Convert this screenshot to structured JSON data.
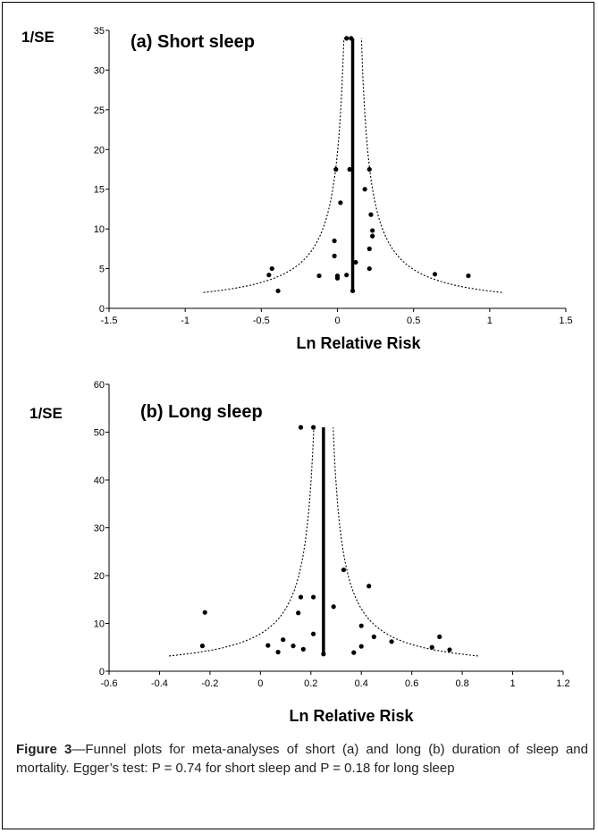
{
  "chart_data": [
    {
      "type": "scatter",
      "title": "(a) Short sleep",
      "ylabel": "1/SE",
      "xlabel": "Ln Relative Risk",
      "xlim": [
        -1.5,
        1.5
      ],
      "ylim": [
        0,
        35
      ],
      "x_ticks": [
        "-1.5",
        "-1",
        "-0.5",
        "0",
        "0.5",
        "1",
        "1.5"
      ],
      "x_tick_values": [
        -1.5,
        -1,
        -0.5,
        0,
        0.5,
        1,
        1.5
      ],
      "y_ticks": [
        "0",
        "5",
        "10",
        "15",
        "20",
        "25",
        "30",
        "35"
      ],
      "y_tick_values": [
        0,
        5,
        10,
        15,
        20,
        25,
        30,
        35
      ],
      "pooled_estimate": 0.1,
      "funnel_limits": "dotted 95% pseudo-confidence limits",
      "points": [
        {
          "x": 0.06,
          "y": 34
        },
        {
          "x": 0.09,
          "y": 34
        },
        {
          "x": -0.01,
          "y": 17.5
        },
        {
          "x": 0.08,
          "y": 17.5
        },
        {
          "x": 0.21,
          "y": 17.5
        },
        {
          "x": 0.18,
          "y": 15
        },
        {
          "x": 0.02,
          "y": 13.3
        },
        {
          "x": 0.22,
          "y": 11.8
        },
        {
          "x": 0.23,
          "y": 9.8
        },
        {
          "x": 0.23,
          "y": 9.1
        },
        {
          "x": -0.02,
          "y": 8.5
        },
        {
          "x": 0.21,
          "y": 7.5
        },
        {
          "x": -0.02,
          "y": 6.6
        },
        {
          "x": 0.12,
          "y": 5.8
        },
        {
          "x": -0.43,
          "y": 5
        },
        {
          "x": 0.21,
          "y": 5
        },
        {
          "x": -0.45,
          "y": 4.2
        },
        {
          "x": -0.12,
          "y": 4.1
        },
        {
          "x": 0.0,
          "y": 4.1
        },
        {
          "x": 0.06,
          "y": 4.2
        },
        {
          "x": 0.0,
          "y": 3.8
        },
        {
          "x": 0.64,
          "y": 4.3
        },
        {
          "x": 0.86,
          "y": 4.1
        },
        {
          "x": -0.39,
          "y": 2.2
        },
        {
          "x": 0.1,
          "y": 2.2
        }
      ]
    },
    {
      "type": "scatter",
      "title": "(b) Long sleep",
      "ylabel": "1/SE",
      "xlabel": "Ln Relative Risk",
      "xlim": [
        -0.6,
        1.2
      ],
      "ylim": [
        0,
        60
      ],
      "x_ticks": [
        "-0.6",
        "-0.4",
        "-0.2",
        "0",
        "0.2",
        "0.4",
        "0.6",
        "0.8",
        "1",
        "1.2"
      ],
      "x_tick_values": [
        -0.6,
        -0.4,
        -0.2,
        0,
        0.2,
        0.4,
        0.6,
        0.8,
        1,
        1.2
      ],
      "y_ticks": [
        "0",
        "10",
        "20",
        "30",
        "40",
        "50",
        "60"
      ],
      "y_tick_values": [
        0,
        10,
        20,
        30,
        40,
        50,
        60
      ],
      "pooled_estimate": 0.25,
      "funnel_limits": "dotted 95% pseudo-confidence limits",
      "points": [
        {
          "x": 0.16,
          "y": 51
        },
        {
          "x": 0.21,
          "y": 51
        },
        {
          "x": 0.33,
          "y": 21.2
        },
        {
          "x": 0.43,
          "y": 17.8
        },
        {
          "x": 0.16,
          "y": 15.5
        },
        {
          "x": 0.21,
          "y": 15.5
        },
        {
          "x": 0.29,
          "y": 13.5
        },
        {
          "x": -0.22,
          "y": 12.3
        },
        {
          "x": 0.15,
          "y": 12.2
        },
        {
          "x": 0.4,
          "y": 9.5
        },
        {
          "x": 0.21,
          "y": 7.8
        },
        {
          "x": 0.45,
          "y": 7.2
        },
        {
          "x": 0.71,
          "y": 7.2
        },
        {
          "x": 0.09,
          "y": 6.6
        },
        {
          "x": 0.52,
          "y": 6.2
        },
        {
          "x": -0.23,
          "y": 5.3
        },
        {
          "x": 0.03,
          "y": 5.4
        },
        {
          "x": 0.13,
          "y": 5.3
        },
        {
          "x": 0.4,
          "y": 5.2
        },
        {
          "x": 0.68,
          "y": 5.0
        },
        {
          "x": 0.17,
          "y": 4.6
        },
        {
          "x": 0.07,
          "y": 4.0
        },
        {
          "x": 0.37,
          "y": 3.9
        },
        {
          "x": 0.25,
          "y": 3.6
        },
        {
          "x": 0.75,
          "y": 4.5
        }
      ]
    }
  ],
  "caption": {
    "label": "Figure 3",
    "text": "—Funnel plots for meta-analyses of short (a) and long (b) duration of sleep and mortality. Egger’s test: P = 0.74 for short sleep and P = 0.18 for long sleep"
  }
}
